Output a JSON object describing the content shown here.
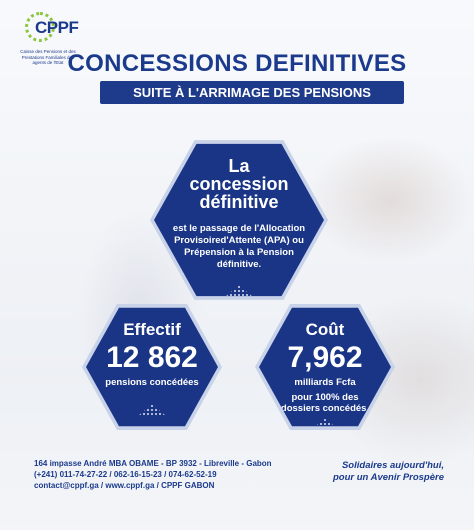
{
  "logo": {
    "name": "CPPF",
    "subtitle": "Caisse des Pensions et des Prestations Familiales des agents de l'Etat"
  },
  "header": {
    "title": "CONCESSIONS DEFINITIVES",
    "subtitle": "SUITE À L'ARRIMAGE DES PENSIONS"
  },
  "definition": {
    "line1": "La",
    "line2": "concession",
    "line3": "définitive",
    "text": "est le passage de l'Allocation Provisoired'Attente (APA) ou Prépension à la Pension définitive."
  },
  "effectif": {
    "label": "Effectif",
    "value": "12 862",
    "caption": "pensions concédées"
  },
  "cout": {
    "label": "Coût",
    "value": "7,962",
    "unit": "milliards Fcfa",
    "caption": "pour 100% des dossiers concédés."
  },
  "footer": {
    "address": "164 impasse André MBA OBAME - BP 3932 - Libreville - Gabon",
    "phones": "(+241) 011-74-27-22 / 062-16-15-23 / 074-62-52-19",
    "contacts": "contact@cppf.ga / www.cppf.ga / CPPF GABON",
    "slogan1": "Solidaires aujourd'hui,",
    "slogan2": "pour un Avenir Prospère"
  },
  "colors": {
    "primary": "#1a3586",
    "accent": "#8cc63f"
  }
}
